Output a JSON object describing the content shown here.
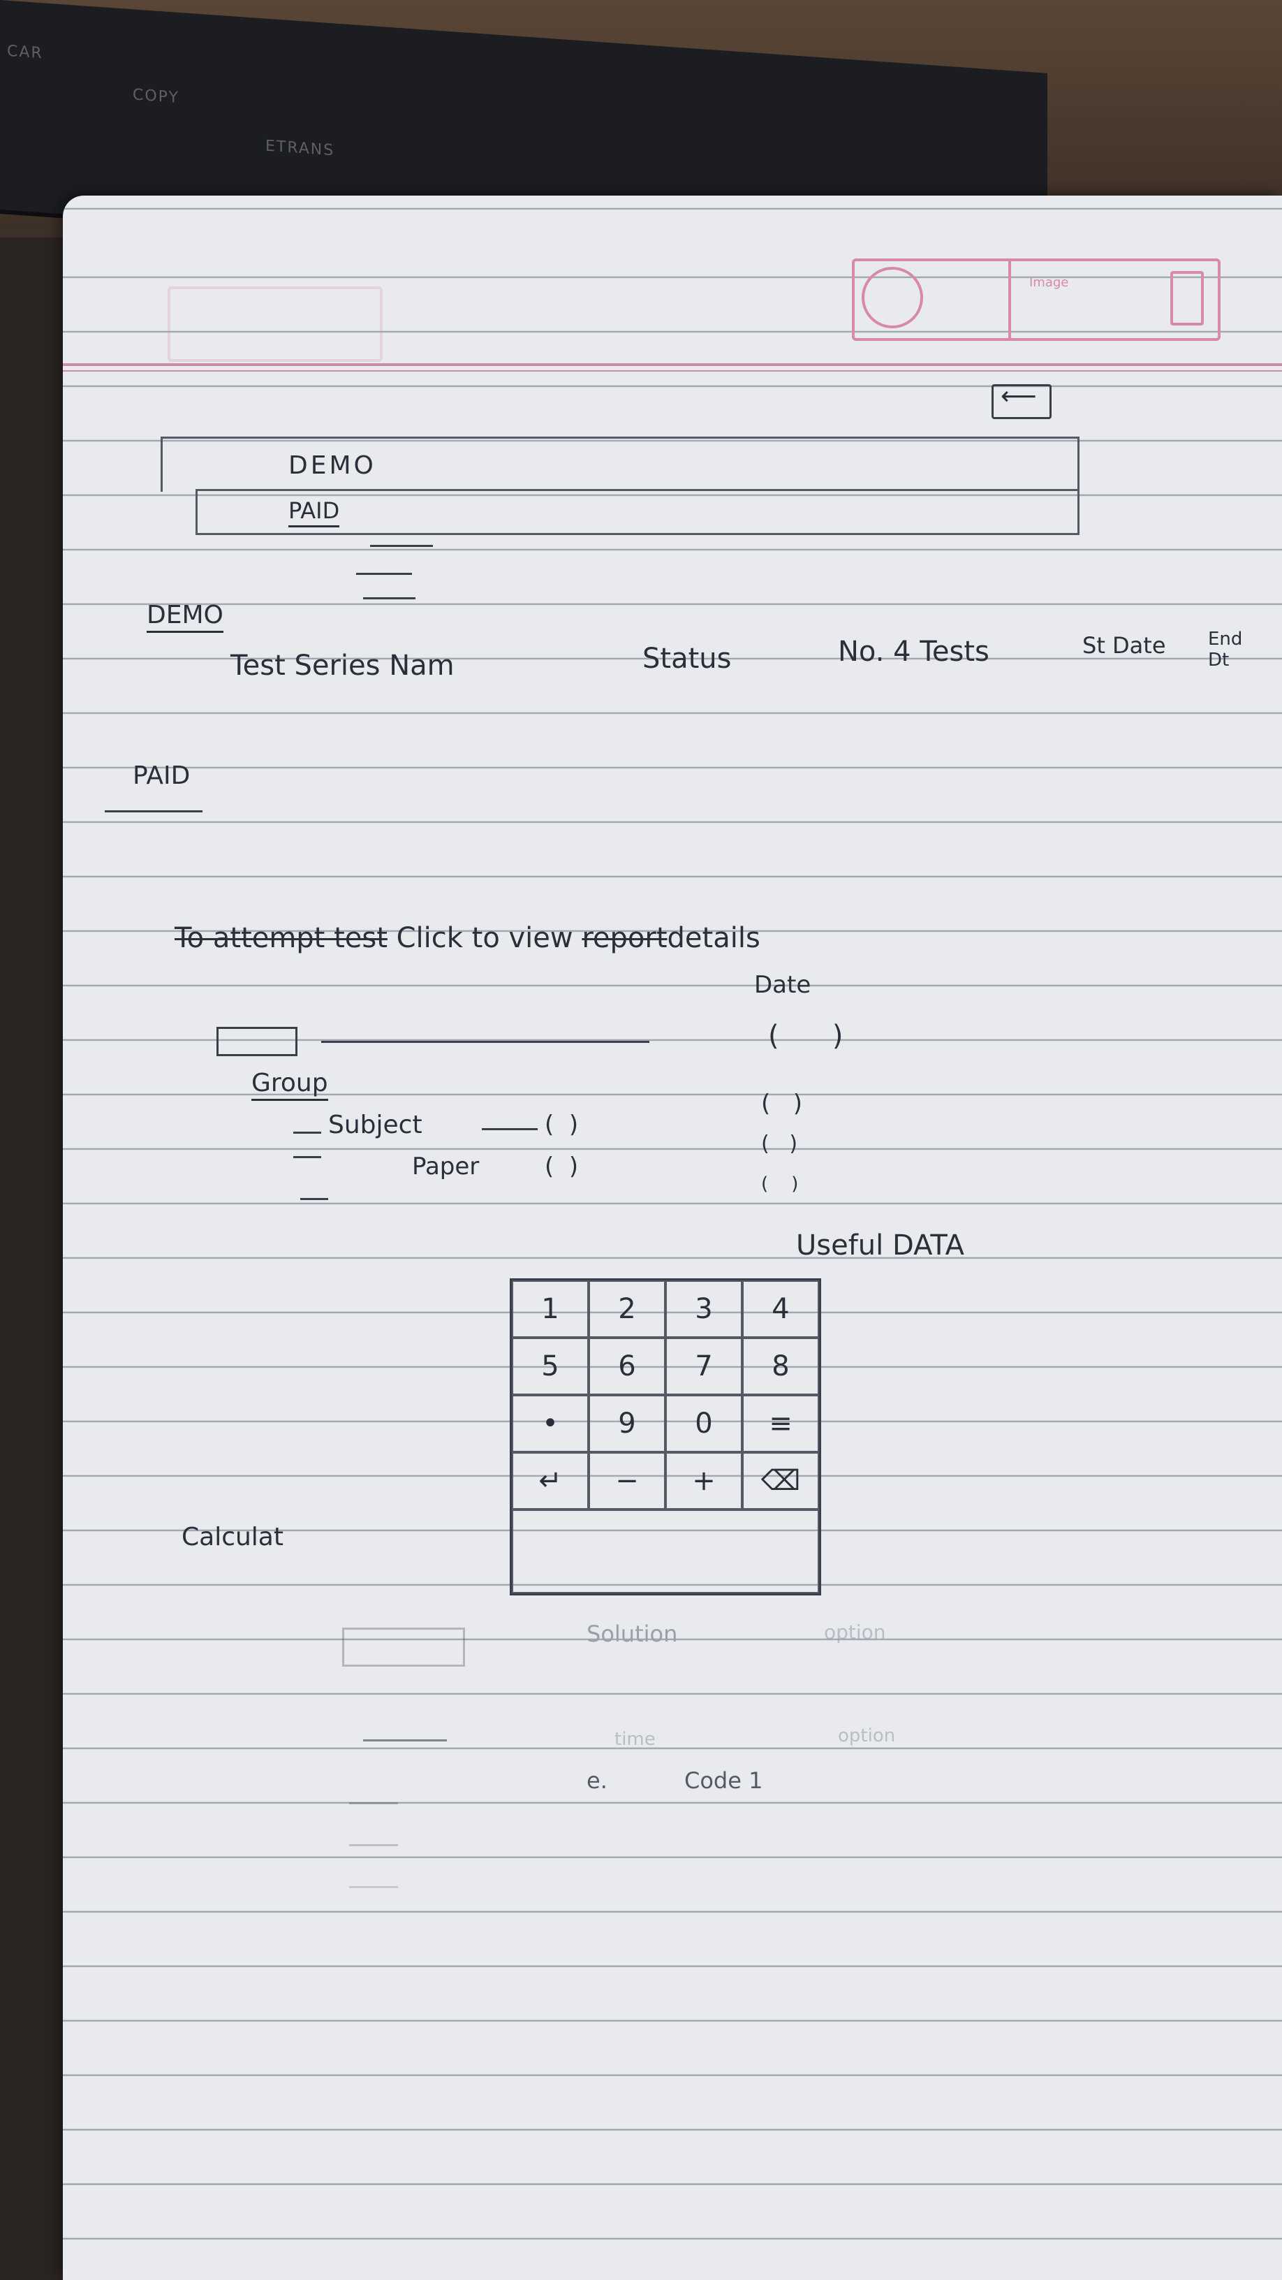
{
  "laptop": {
    "label_1": "CAR",
    "label_2": "COPY",
    "label_3": "ETRANS"
  },
  "top_icons": {
    "label": "Image"
  },
  "tabs": {
    "demo": "DEMO",
    "paid": "PAID"
  },
  "sections": {
    "demo_heading": "DEMO",
    "columns": [
      "Test Series Nam",
      "Status",
      "No. 4 Tests",
      "St Date",
      "End Dt"
    ],
    "paid_heading": "PAID"
  },
  "instruction": {
    "strike_text": "To attempt test",
    "text_1": "Click to view",
    "strike_word": "report",
    "text_2": "details"
  },
  "detail": {
    "date_label": "Date",
    "group_label": "Group",
    "subject_label": "Subject",
    "paper_label": "Paper",
    "useful_label": "Useful DATA"
  },
  "calculator": {
    "label": "Calculat",
    "keys": [
      [
        "1",
        "2",
        "3",
        "4"
      ],
      [
        "5",
        "6",
        "7",
        "8"
      ],
      [
        "•",
        "9",
        "0",
        "≡"
      ],
      [
        "↵",
        "−",
        "+",
        "⌫"
      ]
    ]
  },
  "faint_notes": {
    "solution": "Solution",
    "solution_right": "option",
    "line_2_left": "time",
    "line_2_right": "option",
    "code_label": "e.",
    "code_text": "Code 1"
  }
}
